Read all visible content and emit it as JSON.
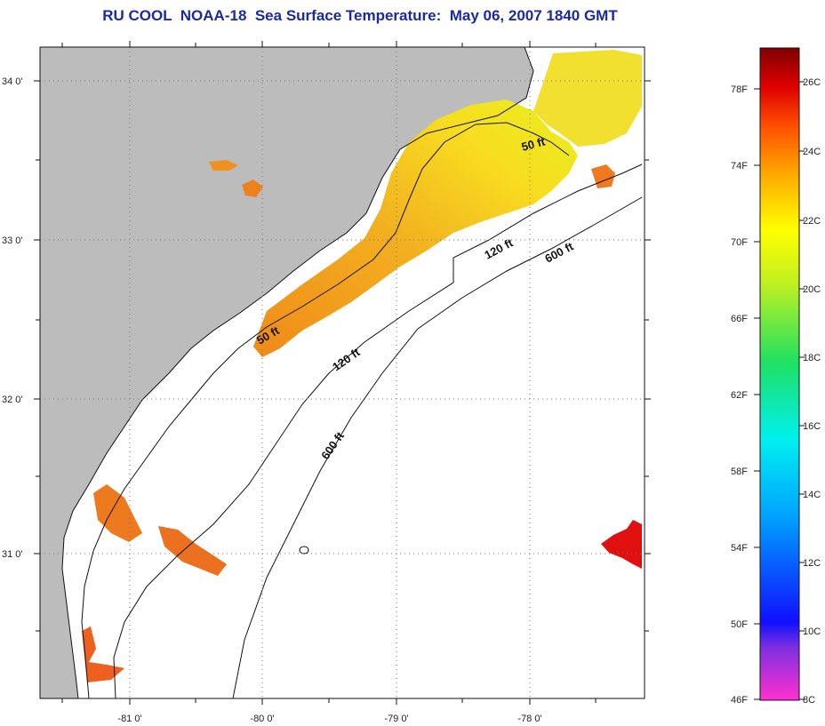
{
  "title": "RU COOL  NOAA-18  Sea Surface Temperature:  May 06, 2007 1840 GMT",
  "map": {
    "lat_labels": [
      "34 0'",
      "33 0'",
      "32 0'",
      "31 0'"
    ],
    "lon_labels": [
      "-81 0'",
      "-80 0'",
      "-79 0'",
      "-78 0'"
    ],
    "contour_labels": {
      "north_50": "50 ft",
      "south_50": "50 ft",
      "north_120": "120 ft",
      "south_120": "120 ft",
      "north_600": "600 ft",
      "south_600": "600 ft"
    },
    "colors": {
      "land": "#bcbcbc",
      "water_nodata": "#ffffff",
      "warm_core": "#f0a020",
      "hot_patch": "#e01010"
    }
  },
  "colorbar": {
    "f_labels": [
      "78F",
      "74F",
      "70F",
      "66F",
      "62F",
      "58F",
      "54F",
      "50F",
      "46F"
    ],
    "c_labels": [
      "26C",
      "24C",
      "22C",
      "20C",
      "18C",
      "16C",
      "14C",
      "12C",
      "10C",
      "8C"
    ]
  }
}
